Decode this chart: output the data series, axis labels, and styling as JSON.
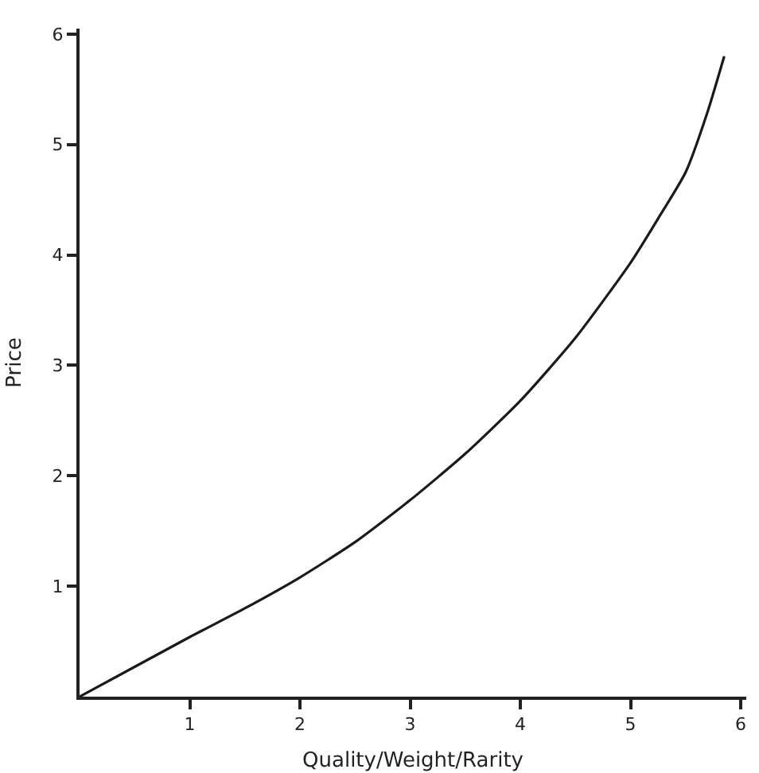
{
  "chart_data": {
    "type": "line",
    "xlabel": "Quality/Weight/Rarity",
    "ylabel": "Price",
    "x": [
      0,
      0.5,
      1,
      1.5,
      2,
      2.5,
      3,
      3.5,
      4,
      4.5,
      5,
      5.25,
      5.5,
      5.7,
      5.85
    ],
    "series": [
      {
        "color": "#1a1a1a",
        "values": [
          0,
          0.27,
          0.54,
          0.8,
          1.08,
          1.4,
          1.78,
          2.2,
          2.68,
          3.25,
          3.93,
          4.33,
          4.75,
          5.3,
          5.8
        ]
      }
    ],
    "xlim": [
      0,
      6.05
    ],
    "ylim": [
      0,
      6.05
    ],
    "xticks": [
      1,
      2,
      3,
      4,
      5,
      6
    ],
    "yticks": [
      1,
      2,
      3,
      4,
      5,
      6
    ],
    "grid": false,
    "marker": "none",
    "line_style": "solid"
  }
}
